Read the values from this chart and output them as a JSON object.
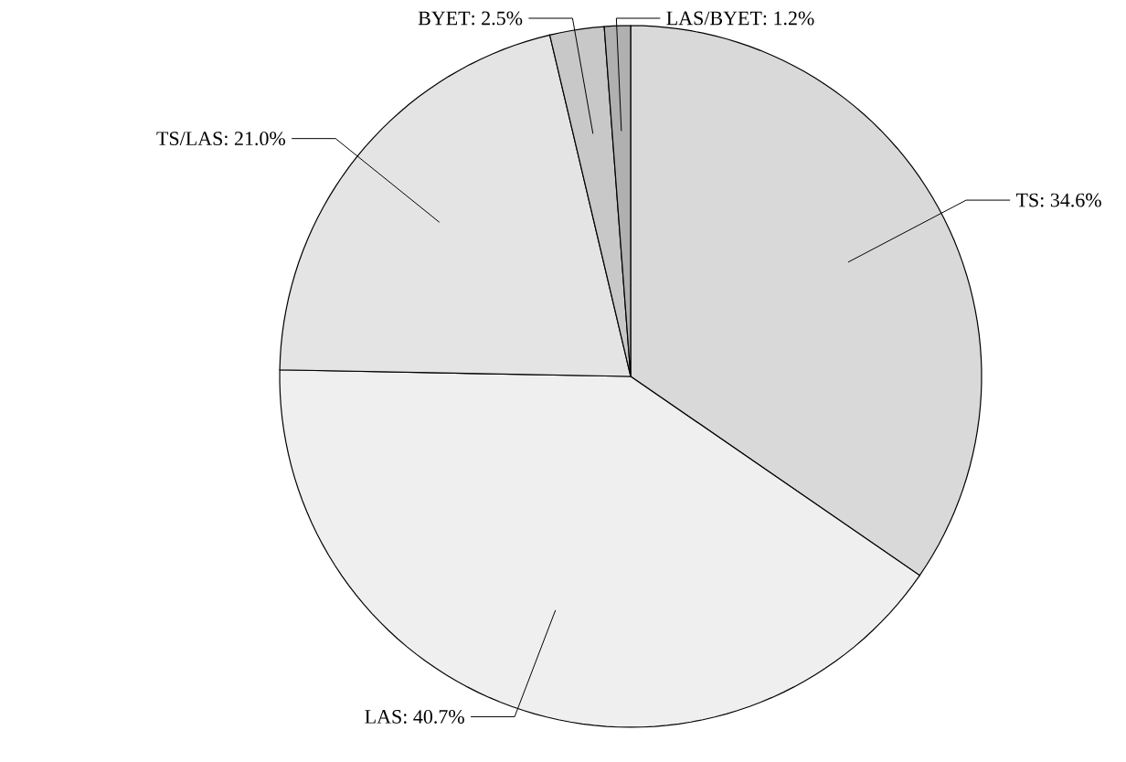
{
  "chart_data": {
    "type": "pie",
    "categories": [
      "TS",
      "LAS",
      "TS/LAS",
      "BYET",
      "LAS/BYET"
    ],
    "values": [
      34.6,
      40.7,
      21.0,
      2.5,
      1.2
    ],
    "colors": [
      "#d9d9d9",
      "#efefef",
      "#e4e4e4",
      "#c8c8c8",
      "#b0b0b0"
    ],
    "value_labels": [
      ": 34.6%",
      ": 40.7%",
      ": 21.0%",
      ": 2.5%",
      ": 1.2%"
    ]
  }
}
